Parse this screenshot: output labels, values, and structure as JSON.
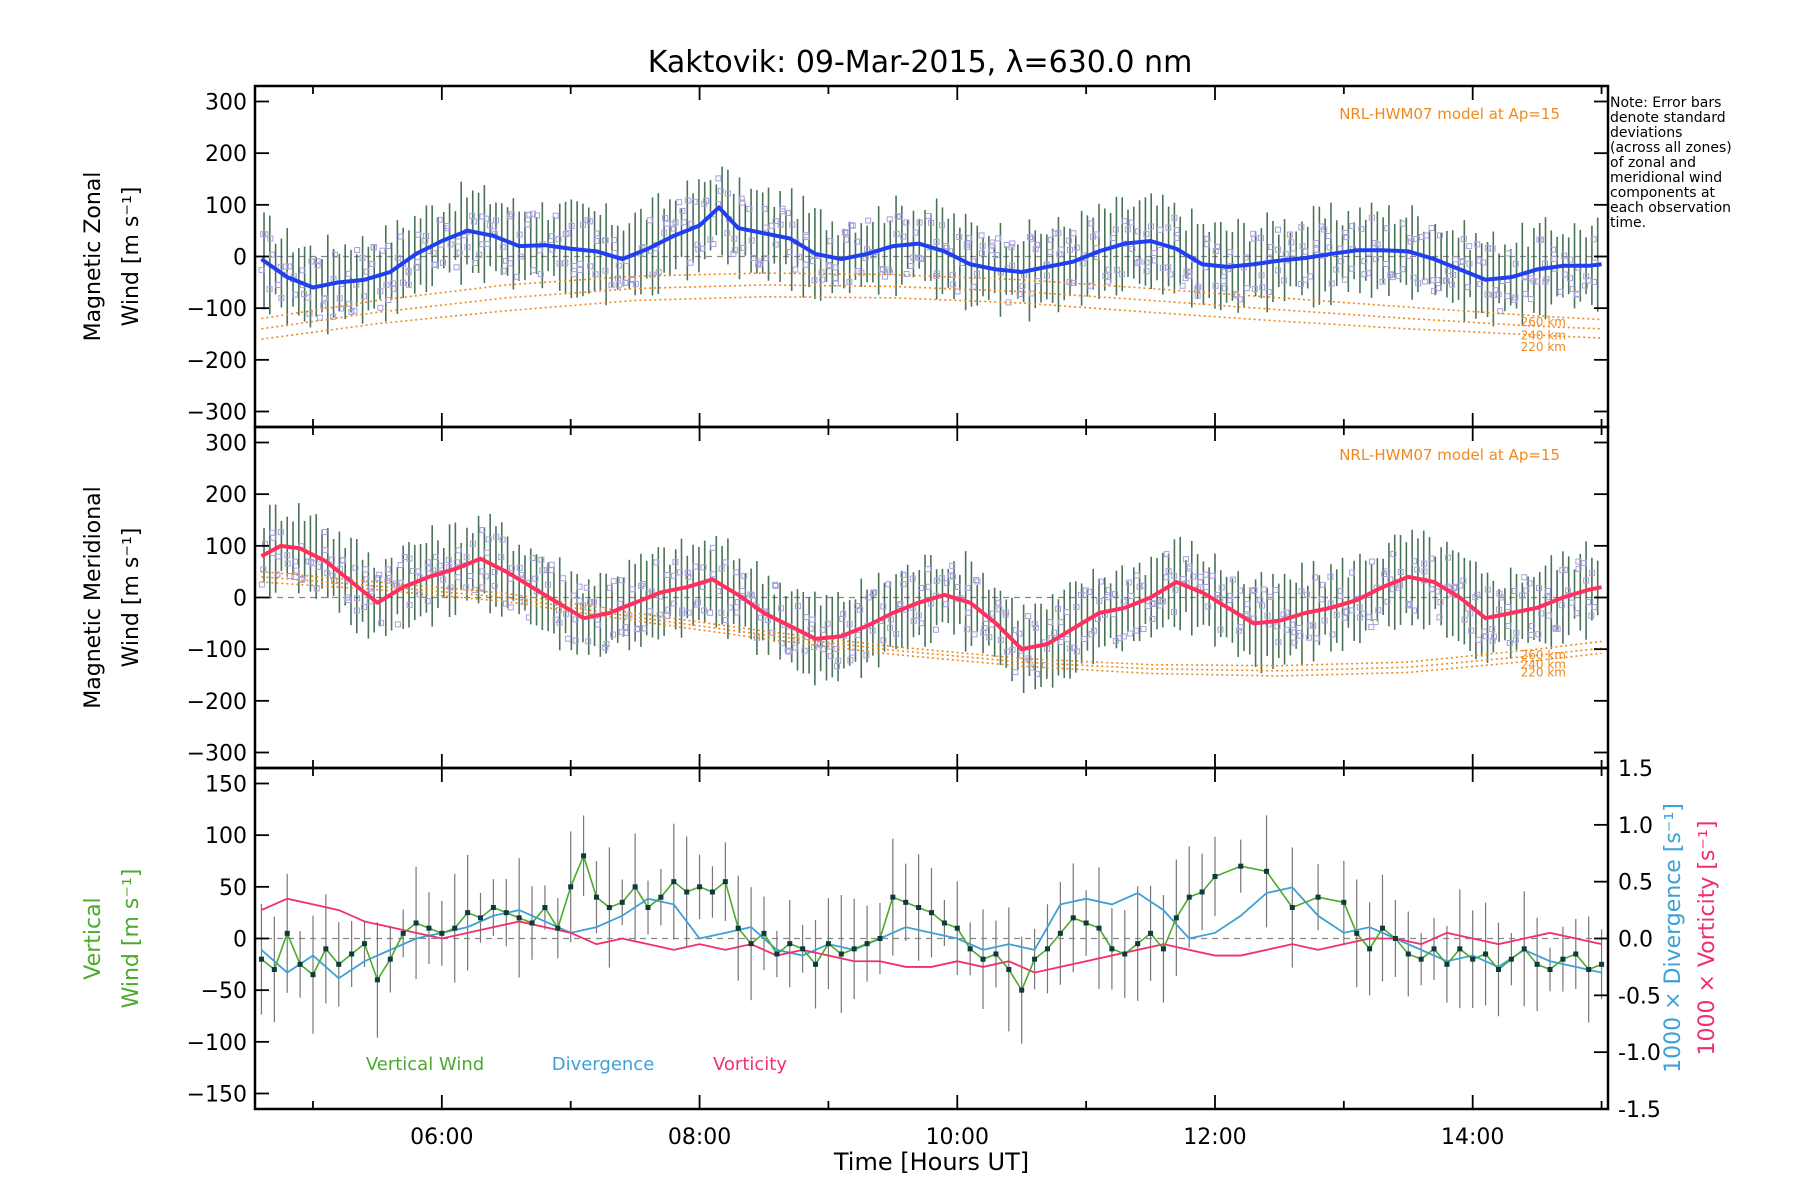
{
  "chart_data": [
    {
      "type": "line",
      "title": "Kaktovik: 09-Mar-2015, λ=630.0 nm",
      "ylabel_line1": "Magnetic Zonal",
      "ylabel_line2": "Wind [m s⁻¹]",
      "ylim": [
        -330,
        330
      ],
      "y_ticks": [
        300,
        200,
        100,
        0,
        -100,
        -200,
        -300
      ],
      "xlim": [
        4.55,
        15.05
      ],
      "model_label": "NRL-HWM07 model at Ap=15",
      "model_altitudes": [
        "260 km",
        "240 km",
        "220 km"
      ],
      "series": [
        {
          "color": "#1f3ff0",
          "x": [
            4.6,
            4.8,
            5.0,
            5.2,
            5.4,
            5.6,
            5.8,
            6.0,
            6.2,
            6.4,
            6.6,
            6.8,
            7.0,
            7.2,
            7.4,
            7.6,
            7.8,
            8.0,
            8.15,
            8.3,
            8.5,
            8.7,
            8.9,
            9.1,
            9.3,
            9.5,
            9.7,
            9.9,
            10.1,
            10.3,
            10.5,
            10.7,
            10.9,
            11.1,
            11.3,
            11.5,
            11.7,
            11.9,
            12.1,
            12.3,
            12.5,
            12.7,
            12.9,
            13.1,
            13.3,
            13.5,
            13.7,
            13.9,
            14.1,
            14.3,
            14.5,
            14.7,
            14.9,
            15.0
          ],
          "y": [
            -5,
            -40,
            -60,
            -50,
            -45,
            -30,
            5,
            30,
            50,
            40,
            20,
            22,
            15,
            10,
            -5,
            15,
            40,
            60,
            95,
            55,
            45,
            35,
            5,
            -5,
            5,
            20,
            25,
            10,
            -15,
            -25,
            -30,
            -20,
            -10,
            10,
            25,
            30,
            15,
            -15,
            -20,
            -15,
            -8,
            -3,
            5,
            12,
            12,
            10,
            -5,
            -25,
            -45,
            -40,
            -25,
            -18,
            -18,
            -15
          ]
        },
        {
          "name": "260 km",
          "color": "#f08a1e",
          "x": [
            4.6,
            5.5,
            6.5,
            7.5,
            8.5,
            9.5,
            10.5,
            11.5,
            12.5,
            13.5,
            14.5,
            15.0
          ],
          "y": [
            -120,
            -85,
            -55,
            -38,
            -32,
            -35,
            -45,
            -62,
            -80,
            -98,
            -115,
            -122
          ]
        },
        {
          "name": "240 km",
          "color": "#f08a1e",
          "x": [
            4.6,
            5.5,
            6.5,
            7.5,
            8.5,
            9.5,
            10.5,
            11.5,
            12.5,
            13.5,
            14.5,
            15.0
          ],
          "y": [
            -140,
            -108,
            -80,
            -62,
            -55,
            -58,
            -68,
            -85,
            -103,
            -120,
            -135,
            -140
          ]
        },
        {
          "name": "220 km",
          "color": "#f08a1e",
          "x": [
            4.6,
            5.5,
            6.5,
            7.5,
            8.5,
            9.5,
            10.5,
            11.5,
            12.5,
            13.5,
            14.5,
            15.0
          ],
          "y": [
            -160,
            -130,
            -105,
            -85,
            -78,
            -80,
            -90,
            -108,
            -125,
            -140,
            -152,
            -158
          ]
        }
      ]
    },
    {
      "type": "line",
      "ylabel_line1": "Magnetic Meridional",
      "ylabel_line2": "Wind [m s⁻¹]",
      "ylim": [
        -330,
        330
      ],
      "y_ticks": [
        300,
        200,
        100,
        0,
        -100,
        -200,
        -300
      ],
      "xlim": [
        4.55,
        15.05
      ],
      "model_label": "NRL-HWM07 model at Ap=15",
      "model_altitudes": [
        "260 km",
        "240 km",
        "220 km"
      ],
      "series": [
        {
          "color": "#ff3060",
          "x": [
            4.6,
            4.75,
            4.9,
            5.1,
            5.3,
            5.5,
            5.7,
            5.9,
            6.1,
            6.3,
            6.5,
            6.7,
            6.9,
            7.1,
            7.3,
            7.5,
            7.7,
            7.9,
            8.1,
            8.3,
            8.5,
            8.7,
            8.9,
            9.1,
            9.3,
            9.5,
            9.7,
            9.9,
            10.1,
            10.3,
            10.5,
            10.7,
            10.9,
            11.1,
            11.3,
            11.5,
            11.7,
            11.9,
            12.1,
            12.3,
            12.5,
            12.7,
            12.9,
            13.1,
            13.3,
            13.5,
            13.7,
            13.9,
            14.1,
            14.3,
            14.5,
            14.7,
            14.9,
            15.0
          ],
          "y": [
            80,
            100,
            95,
            70,
            30,
            -10,
            20,
            40,
            55,
            75,
            50,
            20,
            -10,
            -40,
            -30,
            -10,
            10,
            20,
            35,
            5,
            -30,
            -55,
            -80,
            -75,
            -55,
            -30,
            -10,
            5,
            -10,
            -50,
            -100,
            -90,
            -60,
            -30,
            -20,
            0,
            30,
            10,
            -20,
            -50,
            -45,
            -30,
            -20,
            -5,
            20,
            40,
            30,
            0,
            -40,
            -30,
            -20,
            0,
            15,
            20
          ]
        },
        {
          "name": "260 km",
          "color": "#f08a1e",
          "x": [
            4.6,
            5.5,
            6.5,
            7.5,
            8.5,
            9.5,
            10.5,
            11.5,
            12.5,
            13.5,
            14.5,
            15.0
          ],
          "y": [
            50,
            30,
            8,
            -30,
            -65,
            -95,
            -118,
            -130,
            -132,
            -125,
            -100,
            -85
          ]
        },
        {
          "name": "240 km",
          "color": "#f08a1e",
          "x": [
            4.6,
            5.5,
            6.5,
            7.5,
            8.5,
            9.5,
            10.5,
            11.5,
            12.5,
            13.5,
            14.5,
            15.0
          ],
          "y": [
            40,
            22,
            0,
            -38,
            -72,
            -102,
            -125,
            -138,
            -142,
            -135,
            -112,
            -98
          ]
        },
        {
          "name": "220 km",
          "color": "#f08a1e",
          "x": [
            4.6,
            5.5,
            6.5,
            7.5,
            8.5,
            9.5,
            10.5,
            11.5,
            12.5,
            13.5,
            14.5,
            15.0
          ],
          "y": [
            30,
            15,
            -8,
            -45,
            -80,
            -110,
            -133,
            -147,
            -152,
            -145,
            -122,
            -108
          ]
        }
      ]
    },
    {
      "type": "line",
      "ylabel_line1": "Vertical",
      "ylabel_line2": "Wind [m s⁻¹]",
      "y2label_line1": "1000 × Divergence [s⁻¹]",
      "y2label_line2": "1000 × Vorticity [s⁻¹]",
      "ylim": [
        -165,
        165
      ],
      "y_ticks": [
        150,
        100,
        50,
        0,
        -50,
        -100,
        -150
      ],
      "y2lim": [
        -1.5,
        1.5
      ],
      "y2_ticks": [
        "1.5",
        "1.0",
        "0.5",
        "0.0",
        "-0.5",
        "-1.0",
        "-1.5"
      ],
      "xlim": [
        4.55,
        15.05
      ],
      "x_ticks": [
        "06:00",
        "08:00",
        "10:00",
        "12:00",
        "14:00"
      ],
      "xlabel": "Time [Hours UT]",
      "series": [
        {
          "name": "Vertical Wind",
          "color": "#4caa2c",
          "x": [
            4.6,
            4.7,
            4.8,
            4.9,
            5.0,
            5.1,
            5.2,
            5.3,
            5.4,
            5.5,
            5.6,
            5.7,
            5.8,
            5.9,
            6.0,
            6.1,
            6.2,
            6.3,
            6.4,
            6.5,
            6.6,
            6.7,
            6.8,
            6.9,
            7.0,
            7.1,
            7.2,
            7.3,
            7.4,
            7.5,
            7.6,
            7.7,
            7.8,
            7.9,
            8.0,
            8.1,
            8.2,
            8.3,
            8.4,
            8.5,
            8.6,
            8.7,
            8.8,
            8.9,
            9.0,
            9.1,
            9.2,
            9.3,
            9.4,
            9.5,
            9.6,
            9.7,
            9.8,
            9.9,
            10.0,
            10.1,
            10.2,
            10.3,
            10.4,
            10.5,
            10.6,
            10.7,
            10.8,
            10.9,
            11.0,
            11.1,
            11.2,
            11.3,
            11.4,
            11.5,
            11.6,
            11.7,
            11.8,
            11.9,
            12.0,
            12.2,
            12.4,
            12.6,
            12.8,
            13.0,
            13.1,
            13.2,
            13.3,
            13.4,
            13.5,
            13.6,
            13.7,
            13.8,
            13.9,
            14.0,
            14.1,
            14.2,
            14.3,
            14.4,
            14.5,
            14.6,
            14.7,
            14.8,
            14.9,
            15.0
          ],
          "y": [
            -20,
            -30,
            5,
            -25,
            -35,
            -10,
            -25,
            -15,
            -5,
            -40,
            -20,
            5,
            15,
            10,
            5,
            10,
            25,
            20,
            30,
            25,
            20,
            15,
            30,
            10,
            50,
            80,
            40,
            30,
            35,
            50,
            30,
            40,
            55,
            45,
            50,
            45,
            55,
            10,
            -5,
            5,
            -15,
            -5,
            -10,
            -25,
            -5,
            -15,
            -10,
            -5,
            0,
            40,
            35,
            30,
            25,
            15,
            10,
            -10,
            -20,
            -15,
            -30,
            -50,
            -20,
            -10,
            5,
            20,
            15,
            10,
            -10,
            -15,
            -5,
            5,
            -10,
            20,
            40,
            45,
            60,
            70,
            65,
            30,
            40,
            35,
            5,
            -10,
            10,
            0,
            -15,
            -20,
            -10,
            -25,
            -10,
            -20,
            -15,
            -30,
            -20,
            -10,
            -25,
            -30,
            -20,
            -15,
            -30,
            -25
          ]
        },
        {
          "name": "Divergence",
          "color": "#3ea0d8",
          "x": [
            4.6,
            4.8,
            5.0,
            5.2,
            5.4,
            5.6,
            5.8,
            6.0,
            6.2,
            6.4,
            6.6,
            6.8,
            7.0,
            7.2,
            7.4,
            7.6,
            7.8,
            8.0,
            8.2,
            8.4,
            8.6,
            8.8,
            9.0,
            9.2,
            9.4,
            9.6,
            9.8,
            10.0,
            10.2,
            10.4,
            10.6,
            10.8,
            11.0,
            11.2,
            11.4,
            11.6,
            11.8,
            12.0,
            12.2,
            12.4,
            12.6,
            12.8,
            13.0,
            13.2,
            13.4,
            13.6,
            13.8,
            14.0,
            14.2,
            14.4,
            14.6,
            14.8,
            15.0
          ],
          "y": [
            -0.1,
            -0.3,
            -0.15,
            -0.35,
            -0.2,
            -0.1,
            0.0,
            0.05,
            0.1,
            0.2,
            0.25,
            0.15,
            0.05,
            0.1,
            0.2,
            0.35,
            0.3,
            0.0,
            0.05,
            0.1,
            -0.1,
            -0.15,
            -0.05,
            -0.1,
            0.0,
            0.1,
            0.05,
            0.0,
            -0.1,
            -0.05,
            -0.1,
            0.3,
            0.35,
            0.3,
            0.4,
            0.25,
            0.0,
            0.05,
            0.2,
            0.4,
            0.45,
            0.2,
            0.05,
            0.1,
            0.0,
            -0.1,
            -0.2,
            -0.15,
            -0.25,
            -0.1,
            -0.2,
            -0.25,
            -0.3
          ]
        },
        {
          "name": "Vorticity",
          "color": "#f0306a",
          "x": [
            4.6,
            4.8,
            5.0,
            5.2,
            5.4,
            5.6,
            5.8,
            6.0,
            6.2,
            6.4,
            6.6,
            6.8,
            7.0,
            7.2,
            7.4,
            7.6,
            7.8,
            8.0,
            8.2,
            8.4,
            8.6,
            8.8,
            9.0,
            9.2,
            9.4,
            9.6,
            9.8,
            10.0,
            10.2,
            10.4,
            10.6,
            10.8,
            11.0,
            11.2,
            11.4,
            11.6,
            11.8,
            12.0,
            12.2,
            12.4,
            12.6,
            12.8,
            13.0,
            13.2,
            13.4,
            13.6,
            13.8,
            14.0,
            14.2,
            14.4,
            14.6,
            14.8,
            15.0
          ],
          "y": [
            0.25,
            0.35,
            0.3,
            0.25,
            0.15,
            0.1,
            0.05,
            0.0,
            0.05,
            0.1,
            0.15,
            0.1,
            0.05,
            -0.05,
            0.0,
            -0.05,
            -0.1,
            -0.05,
            -0.1,
            -0.05,
            -0.15,
            -0.1,
            -0.15,
            -0.2,
            -0.2,
            -0.25,
            -0.25,
            -0.2,
            -0.25,
            -0.2,
            -0.3,
            -0.25,
            -0.2,
            -0.15,
            -0.1,
            -0.05,
            -0.1,
            -0.15,
            -0.15,
            -0.1,
            -0.05,
            -0.1,
            -0.05,
            0.0,
            0.0,
            -0.05,
            0.05,
            0.0,
            -0.05,
            0.0,
            0.05,
            0.0,
            -0.05
          ]
        }
      ],
      "legend": [
        {
          "label": "Vertical Wind",
          "color": "#4caa2c"
        },
        {
          "label": "Divergence",
          "color": "#3ea0d8"
        },
        {
          "label": "Vorticity",
          "color": "#f0306a"
        }
      ]
    }
  ],
  "note_lines": [
    "Note: Error bars",
    "denote standard",
    "deviations",
    "(across all zones)",
    "of zonal and",
    "meridional wind",
    "components at",
    "each observation",
    "time."
  ],
  "colors": {
    "zonal": "#1f3ff0",
    "meridional": "#ff3060",
    "model": "#f08a1e",
    "scatter": "#a8a0dc",
    "errorbar": "#2a5a3a"
  }
}
